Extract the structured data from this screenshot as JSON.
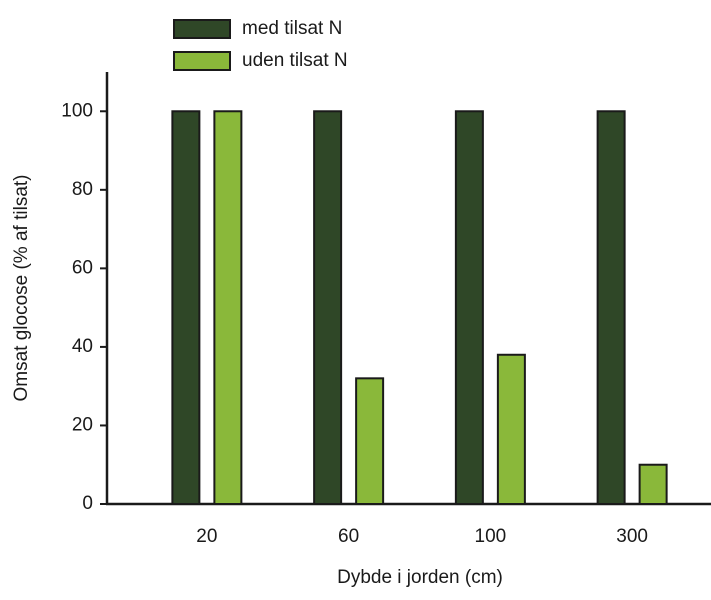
{
  "chart_data": {
    "type": "bar",
    "categories": [
      "20",
      "60",
      "100",
      "300"
    ],
    "series": [
      {
        "name": "med tilsat N",
        "color": "#2f4727",
        "values": [
          100,
          100,
          100,
          100
        ]
      },
      {
        "name": "uden tilsat N",
        "color": "#8ab83a",
        "values": [
          100,
          32,
          38,
          10
        ]
      }
    ],
    "x_label": "Dybde i jorden (cm)",
    "y_label": "Omsat glocose (% af tilsat)",
    "ylim": [
      0,
      110
    ],
    "yticks": [
      0,
      20,
      40,
      60,
      80,
      100
    ],
    "legend": "top-left",
    "grid": false
  }
}
